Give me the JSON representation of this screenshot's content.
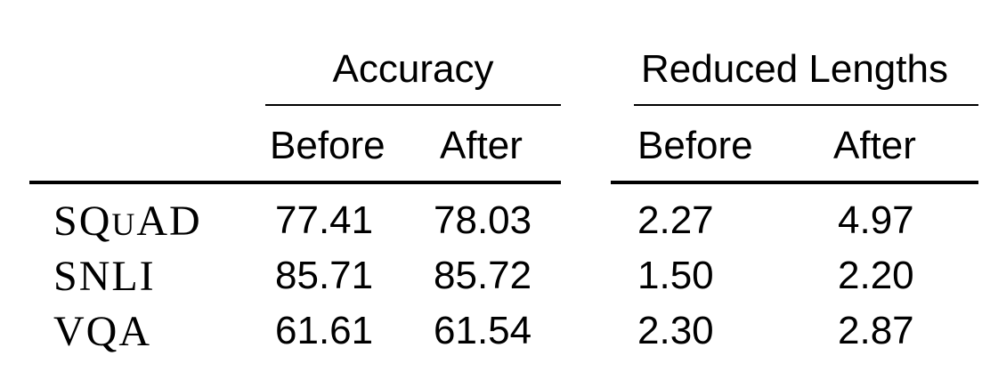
{
  "table": {
    "group_headers": {
      "accuracy": "Accuracy",
      "reduced_lengths": "Reduced Lengths"
    },
    "sub_headers": {
      "accuracy_before": "Before",
      "accuracy_after": "After",
      "lengths_before": "Before",
      "lengths_after": "After"
    },
    "rows": [
      {
        "dataset_main": "SQ",
        "dataset_sc": "U",
        "dataset_tail": "AD",
        "acc_before": "77.41",
        "acc_after": "78.03",
        "len_before": "2.27",
        "len_after": "4.97"
      },
      {
        "dataset_main": "SNLI",
        "acc_before": "85.71",
        "acc_after": "85.72",
        "len_before": "1.50",
        "len_after": "2.20"
      },
      {
        "dataset_main": "VQA",
        "acc_before": "61.61",
        "acc_after": "61.54",
        "len_before": "2.30",
        "len_after": "2.87"
      }
    ]
  }
}
